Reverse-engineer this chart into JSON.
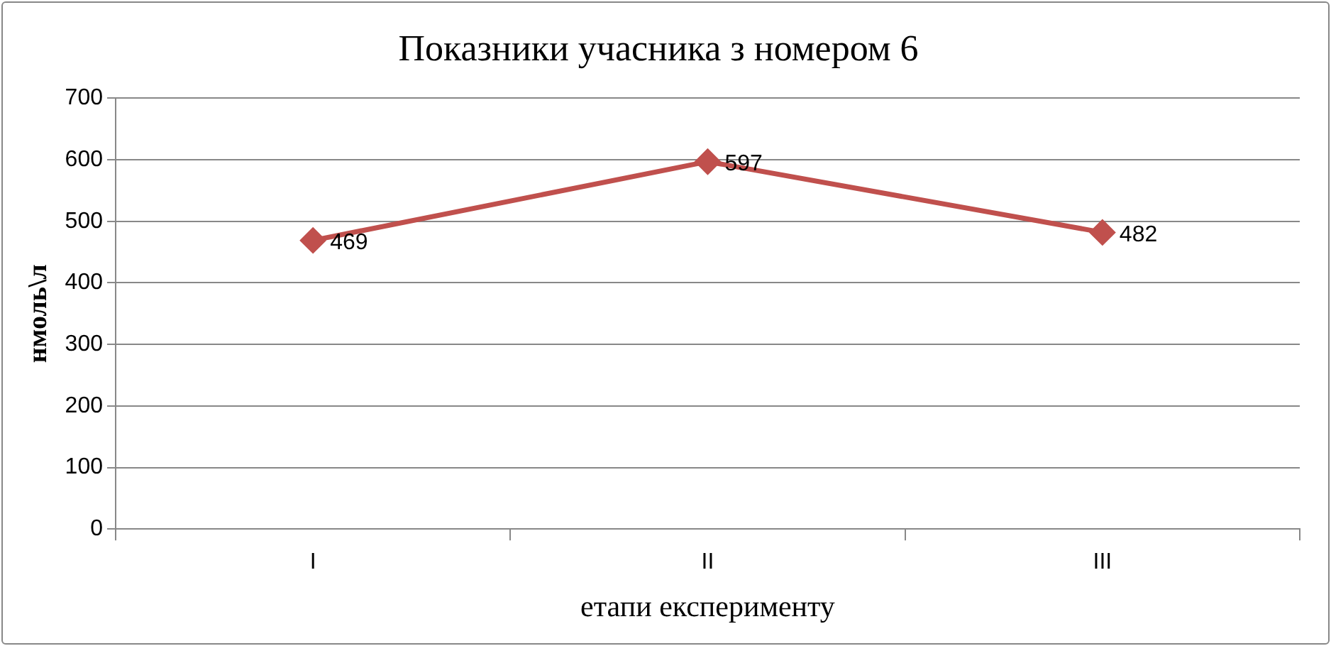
{
  "chart_data": {
    "type": "line",
    "title": "Показники учасника з номером 6",
    "xlabel": "етапи експерименту",
    "ylabel": "нмоль\\л",
    "categories": [
      "I",
      "II",
      "III"
    ],
    "series": [
      {
        "color": "#c0504d",
        "values": [
          469,
          597,
          482
        ]
      }
    ],
    "ylim": [
      0,
      700
    ],
    "yticks": [
      0,
      100,
      200,
      300,
      400,
      500,
      600,
      700
    ],
    "grid": "y",
    "legend": false,
    "marker": "diamond",
    "line_style": "solid",
    "data_labels": true
  }
}
